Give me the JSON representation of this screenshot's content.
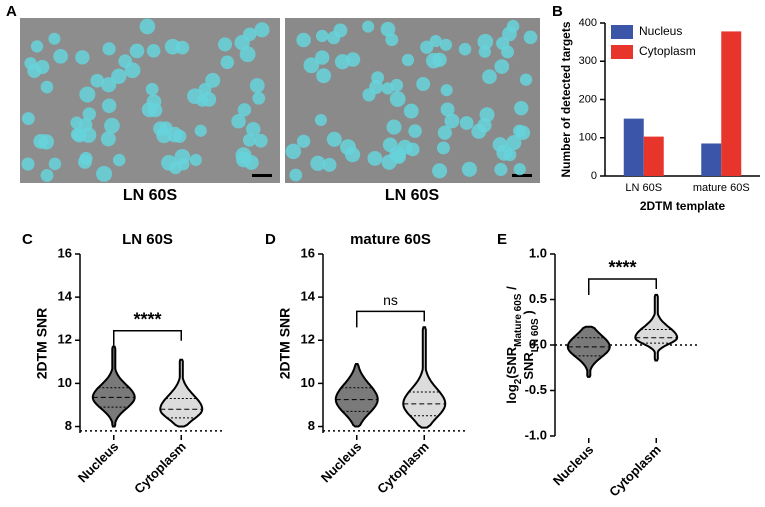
{
  "panel_a": {
    "label": "A",
    "captions": [
      "LN 60S",
      "LN 60S"
    ]
  },
  "chart_data": [
    {
      "panel": "B",
      "type": "bar",
      "ylabel": "Number of detected targets",
      "xlabel": "2DTM template",
      "categories": [
        "LN 60S",
        "mature 60S"
      ],
      "series": [
        {
          "name": "Nucleus",
          "color": "#3b55a8",
          "values": [
            150,
            85
          ]
        },
        {
          "name": "Cytoplasm",
          "color": "#e8352b",
          "values": [
            103,
            378
          ]
        }
      ],
      "ylim": [
        0,
        400
      ],
      "yticks": [
        0,
        100,
        200,
        300,
        400
      ],
      "legend": "upper left"
    },
    {
      "panel": "C",
      "type": "violin",
      "title": "LN 60S",
      "ylabel": "2DTM SNR",
      "categories": [
        "Nucleus",
        "Cytoplasm"
      ],
      "violins": [
        {
          "color": "#7a7a7a",
          "min": 8.0,
          "q1": 8.9,
          "median": 9.35,
          "q3": 9.8,
          "max": 11.7
        },
        {
          "color": "#dcdcdc",
          "min": 8.0,
          "q1": 8.4,
          "median": 8.8,
          "q3": 9.3,
          "max": 11.1
        }
      ],
      "ylim": [
        7.7,
        16
      ],
      "yticks": [
        8,
        10,
        12,
        14,
        16
      ],
      "reference_line": 7.8,
      "significance": "****"
    },
    {
      "panel": "D",
      "type": "violin",
      "title": "mature 60S",
      "ylabel": "2DTM SNR",
      "categories": [
        "Nucleus",
        "Cytoplasm"
      ],
      "violins": [
        {
          "color": "#7a7a7a",
          "min": 8.0,
          "q1": 8.7,
          "median": 9.25,
          "q3": 9.8,
          "max": 10.9
        },
        {
          "color": "#dcdcdc",
          "min": 7.95,
          "q1": 8.5,
          "median": 9.05,
          "q3": 9.6,
          "max": 12.6
        }
      ],
      "ylim": [
        7.7,
        16
      ],
      "yticks": [
        8,
        10,
        12,
        14,
        16
      ],
      "reference_line": 7.8,
      "significance": "ns"
    },
    {
      "panel": "E",
      "type": "violin",
      "ylabel_lines": [
        [
          {
            "text": "log"
          },
          {
            "text": "2",
            "sub": true
          },
          {
            "text": "(SNR"
          },
          {
            "text": "Mature 60S",
            "sub": true
          },
          {
            "text": " /"
          }
        ],
        [
          {
            "text": "SNR"
          },
          {
            "text": "LN 60S",
            "sub": true
          },
          {
            "text": " )"
          }
        ]
      ],
      "categories": [
        "Nucleus",
        "Cytoplasm"
      ],
      "violins": [
        {
          "color": "#7a7a7a",
          "min": -0.35,
          "q1": -0.12,
          "median": -0.02,
          "q3": 0.08,
          "max": 0.2
        },
        {
          "color": "#dcdcdc",
          "min": -0.17,
          "q1": 0.02,
          "median": 0.08,
          "q3": 0.17,
          "max": 0.55
        }
      ],
      "ylim": [
        -1,
        1
      ],
      "yticks": [
        {
          "value": -1,
          "label": "-1.0"
        },
        {
          "value": -0.5,
          "label": "-0.5"
        },
        {
          "value": 0,
          "label": "0.0"
        },
        {
          "value": 0.5,
          "label": "0.5"
        },
        {
          "value": 1,
          "label": "1.0"
        }
      ],
      "reference_line": 0,
      "significance": "****"
    }
  ]
}
